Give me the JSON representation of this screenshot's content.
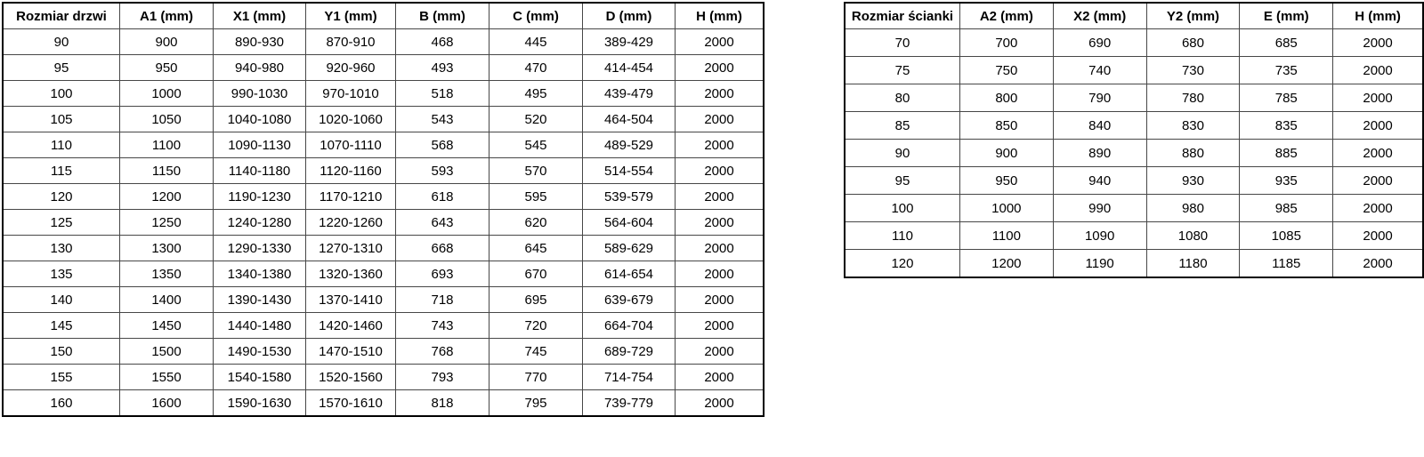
{
  "door_table": {
    "headers": [
      "Rozmiar drzwi",
      "A1 (mm)",
      "X1 (mm)",
      "Y1 (mm)",
      "B (mm)",
      "C (mm)",
      "D (mm)",
      "H (mm)"
    ],
    "rows": [
      [
        "90",
        "900",
        "890-930",
        "870-910",
        "468",
        "445",
        "389-429",
        "2000"
      ],
      [
        "95",
        "950",
        "940-980",
        "920-960",
        "493",
        "470",
        "414-454",
        "2000"
      ],
      [
        "100",
        "1000",
        "990-1030",
        "970-1010",
        "518",
        "495",
        "439-479",
        "2000"
      ],
      [
        "105",
        "1050",
        "1040-1080",
        "1020-1060",
        "543",
        "520",
        "464-504",
        "2000"
      ],
      [
        "110",
        "1100",
        "1090-1130",
        "1070-1110",
        "568",
        "545",
        "489-529",
        "2000"
      ],
      [
        "115",
        "1150",
        "1140-1180",
        "1120-1160",
        "593",
        "570",
        "514-554",
        "2000"
      ],
      [
        "120",
        "1200",
        "1190-1230",
        "1170-1210",
        "618",
        "595",
        "539-579",
        "2000"
      ],
      [
        "125",
        "1250",
        "1240-1280",
        "1220-1260",
        "643",
        "620",
        "564-604",
        "2000"
      ],
      [
        "130",
        "1300",
        "1290-1330",
        "1270-1310",
        "668",
        "645",
        "589-629",
        "2000"
      ],
      [
        "135",
        "1350",
        "1340-1380",
        "1320-1360",
        "693",
        "670",
        "614-654",
        "2000"
      ],
      [
        "140",
        "1400",
        "1390-1430",
        "1370-1410",
        "718",
        "695",
        "639-679",
        "2000"
      ],
      [
        "145",
        "1450",
        "1440-1480",
        "1420-1460",
        "743",
        "720",
        "664-704",
        "2000"
      ],
      [
        "150",
        "1500",
        "1490-1530",
        "1470-1510",
        "768",
        "745",
        "689-729",
        "2000"
      ],
      [
        "155",
        "1550",
        "1540-1580",
        "1520-1560",
        "793",
        "770",
        "714-754",
        "2000"
      ],
      [
        "160",
        "1600",
        "1590-1630",
        "1570-1610",
        "818",
        "795",
        "739-779",
        "2000"
      ]
    ]
  },
  "wall_table": {
    "headers": [
      "Rozmiar ścianki",
      "A2 (mm)",
      "X2 (mm)",
      "Y2 (mm)",
      "E (mm)",
      "H (mm)"
    ],
    "rows": [
      [
        "70",
        "700",
        "690",
        "680",
        "685",
        "2000"
      ],
      [
        "75",
        "750",
        "740",
        "730",
        "735",
        "2000"
      ],
      [
        "80",
        "800",
        "790",
        "780",
        "785",
        "2000"
      ],
      [
        "85",
        "850",
        "840",
        "830",
        "835",
        "2000"
      ],
      [
        "90",
        "900",
        "890",
        "880",
        "885",
        "2000"
      ],
      [
        "95",
        "950",
        "940",
        "930",
        "935",
        "2000"
      ],
      [
        "100",
        "1000",
        "990",
        "980",
        "985",
        "2000"
      ],
      [
        "110",
        "1100",
        "1090",
        "1080",
        "1085",
        "2000"
      ],
      [
        "120",
        "1200",
        "1190",
        "1180",
        "1185",
        "2000"
      ]
    ]
  },
  "colors": {
    "background": "#ffffff",
    "text": "#000000",
    "grid_line": "#474747",
    "outer_border": "#000000"
  }
}
